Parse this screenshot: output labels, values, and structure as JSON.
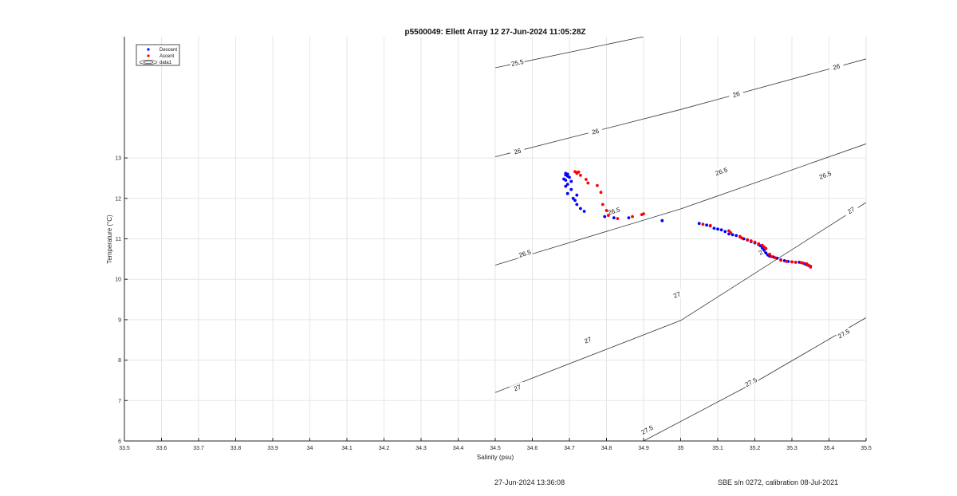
{
  "chart_data": {
    "type": "scatter",
    "title": "p5500049: Ellett Array 12 27-Jun-2024 11:05:28Z",
    "xlabel": "Salinity (psu)",
    "ylabel": "Temperature (°C)",
    "xlim": [
      33.5,
      35.5
    ],
    "ylim": [
      6,
      16
    ],
    "x_ticks": [
      33.5,
      33.6,
      33.7,
      33.8,
      33.9,
      34,
      34.1,
      34.2,
      34.3,
      34.4,
      34.5,
      34.6,
      34.7,
      34.8,
      34.9,
      35,
      35.1,
      35.2,
      35.3,
      35.4,
      35.5
    ],
    "x_tick_labels": [
      "33.5",
      "33.6",
      "33.7",
      "33.8",
      "33.9",
      "34",
      "34.1",
      "34.2",
      "34.3",
      "34.4",
      "34.5",
      "34.6",
      "34.7",
      "34.8",
      "34.9",
      "35",
      "35.1",
      "35.2",
      "35.3",
      "35.4",
      "35.5"
    ],
    "y_ticks": [
      6,
      7,
      8,
      9,
      10,
      11,
      12,
      13
    ],
    "y_tick_labels": [
      "6",
      "7",
      "8",
      "9",
      "10",
      "11",
      "12",
      "13"
    ],
    "grid": true,
    "legend_position": "top-left",
    "legend": [
      {
        "label": "Descent",
        "color": "#0000ff",
        "marker": "dot"
      },
      {
        "label": "Ascent",
        "color": "#ff0000",
        "marker": "dot"
      },
      {
        "label": "data1",
        "color": "#333333",
        "marker": "contour"
      }
    ],
    "series": [
      {
        "name": "Descent",
        "color": "#0000ff",
        "points": [
          [
            34.69,
            12.62
          ],
          [
            34.695,
            12.6
          ],
          [
            34.69,
            12.58
          ],
          [
            34.695,
            12.55
          ],
          [
            34.7,
            12.52
          ],
          [
            34.685,
            12.48
          ],
          [
            34.69,
            12.45
          ],
          [
            34.705,
            12.42
          ],
          [
            34.695,
            12.35
          ],
          [
            34.69,
            12.3
          ],
          [
            34.705,
            12.22
          ],
          [
            34.695,
            12.12
          ],
          [
            34.72,
            12.08
          ],
          [
            34.71,
            12.0
          ],
          [
            34.715,
            11.95
          ],
          [
            34.72,
            11.85
          ],
          [
            34.73,
            11.75
          ],
          [
            34.74,
            11.68
          ],
          [
            34.795,
            11.55
          ],
          [
            34.82,
            11.52
          ],
          [
            34.86,
            11.52
          ],
          [
            34.95,
            11.45
          ],
          [
            35.05,
            11.38
          ],
          [
            35.07,
            11.34
          ],
          [
            35.08,
            11.32
          ],
          [
            35.09,
            11.26
          ],
          [
            35.1,
            11.24
          ],
          [
            35.11,
            11.22
          ],
          [
            35.12,
            11.18
          ],
          [
            35.13,
            11.12
          ],
          [
            35.14,
            11.1
          ],
          [
            35.15,
            11.08
          ],
          [
            35.16,
            11.05
          ],
          [
            35.17,
            11.0
          ],
          [
            35.18,
            10.97
          ],
          [
            35.19,
            10.93
          ],
          [
            35.2,
            10.9
          ],
          [
            35.21,
            10.86
          ],
          [
            35.215,
            10.83
          ],
          [
            35.22,
            10.78
          ],
          [
            35.225,
            10.72
          ],
          [
            35.23,
            10.65
          ],
          [
            35.235,
            10.6
          ],
          [
            35.24,
            10.57
          ],
          [
            35.25,
            10.55
          ],
          [
            35.26,
            10.52
          ],
          [
            35.27,
            10.48
          ],
          [
            35.28,
            10.46
          ],
          [
            35.29,
            10.44
          ],
          [
            35.3,
            10.43
          ],
          [
            35.31,
            10.42
          ],
          [
            35.32,
            10.42
          ],
          [
            35.33,
            10.4
          ],
          [
            35.335,
            10.38
          ],
          [
            35.34,
            10.36
          ],
          [
            35.345,
            10.34
          ],
          [
            35.35,
            10.32
          ]
        ]
      },
      {
        "name": "Ascent",
        "color": "#ff0000",
        "points": [
          [
            34.715,
            12.66
          ],
          [
            34.72,
            12.64
          ],
          [
            34.725,
            12.65
          ],
          [
            34.72,
            12.62
          ],
          [
            34.73,
            12.57
          ],
          [
            34.745,
            12.47
          ],
          [
            34.75,
            12.38
          ],
          [
            34.775,
            12.32
          ],
          [
            34.785,
            12.15
          ],
          [
            34.79,
            11.85
          ],
          [
            34.8,
            11.7
          ],
          [
            34.805,
            11.58
          ],
          [
            34.83,
            11.5
          ],
          [
            34.87,
            11.55
          ],
          [
            34.895,
            11.6
          ],
          [
            34.9,
            11.62
          ],
          [
            35.06,
            11.36
          ],
          [
            35.08,
            11.33
          ],
          [
            35.13,
            11.2
          ],
          [
            35.135,
            11.15
          ],
          [
            35.16,
            11.06
          ],
          [
            35.165,
            11.02
          ],
          [
            35.18,
            10.98
          ],
          [
            35.19,
            10.95
          ],
          [
            35.2,
            10.92
          ],
          [
            35.21,
            10.88
          ],
          [
            35.22,
            10.84
          ],
          [
            35.225,
            10.8
          ],
          [
            35.23,
            10.76
          ],
          [
            35.24,
            10.62
          ],
          [
            35.245,
            10.56
          ],
          [
            35.255,
            10.53
          ],
          [
            35.27,
            10.47
          ],
          [
            35.285,
            10.44
          ],
          [
            35.3,
            10.43
          ],
          [
            35.31,
            10.42
          ],
          [
            35.325,
            10.41
          ],
          [
            35.33,
            10.4
          ],
          [
            35.34,
            10.38
          ],
          [
            35.345,
            10.35
          ],
          [
            35.35,
            10.3
          ]
        ]
      }
    ],
    "contours": [
      {
        "label": "25.5",
        "points": [
          [
            34.5,
            15.23
          ],
          [
            34.9,
            16.0
          ]
        ],
        "label_positions": [
          [
            34.56,
            15.35
          ]
        ]
      },
      {
        "label": "26",
        "points": [
          [
            34.5,
            13.03
          ],
          [
            35.0,
            14.2
          ],
          [
            35.5,
            15.45
          ]
        ],
        "label_positions": [
          [
            34.56,
            13.16
          ],
          [
            34.77,
            13.65
          ],
          [
            35.15,
            14.57
          ],
          [
            35.42,
            15.25
          ]
        ]
      },
      {
        "label": "26.5",
        "points": [
          [
            34.5,
            10.35
          ],
          [
            35.0,
            11.74
          ],
          [
            35.5,
            13.35
          ]
        ],
        "label_positions": [
          [
            34.58,
            10.63
          ],
          [
            34.82,
            11.68
          ],
          [
            35.11,
            12.66
          ],
          [
            35.39,
            12.57
          ]
        ]
      },
      {
        "label": "27",
        "points": [
          [
            34.5,
            7.2
          ],
          [
            35.0,
            8.98
          ],
          [
            35.5,
            11.9
          ]
        ],
        "label_positions": [
          [
            34.56,
            7.31
          ],
          [
            34.75,
            8.49
          ],
          [
            34.99,
            9.61
          ],
          [
            35.22,
            10.68
          ],
          [
            35.46,
            11.7
          ]
        ]
      },
      {
        "label": "27.5",
        "points": [
          [
            34.9,
            6.0
          ],
          [
            35.2,
            7.45
          ],
          [
            35.5,
            9.05
          ]
        ],
        "label_positions": [
          [
            34.91,
            6.27
          ],
          [
            35.19,
            7.45
          ],
          [
            35.44,
            8.65
          ]
        ]
      }
    ]
  },
  "footer": {
    "timestamp": "27-Jun-2024 13:36:08",
    "calibration": "SBE s/n 0272, calibration 08-Jul-2021"
  }
}
